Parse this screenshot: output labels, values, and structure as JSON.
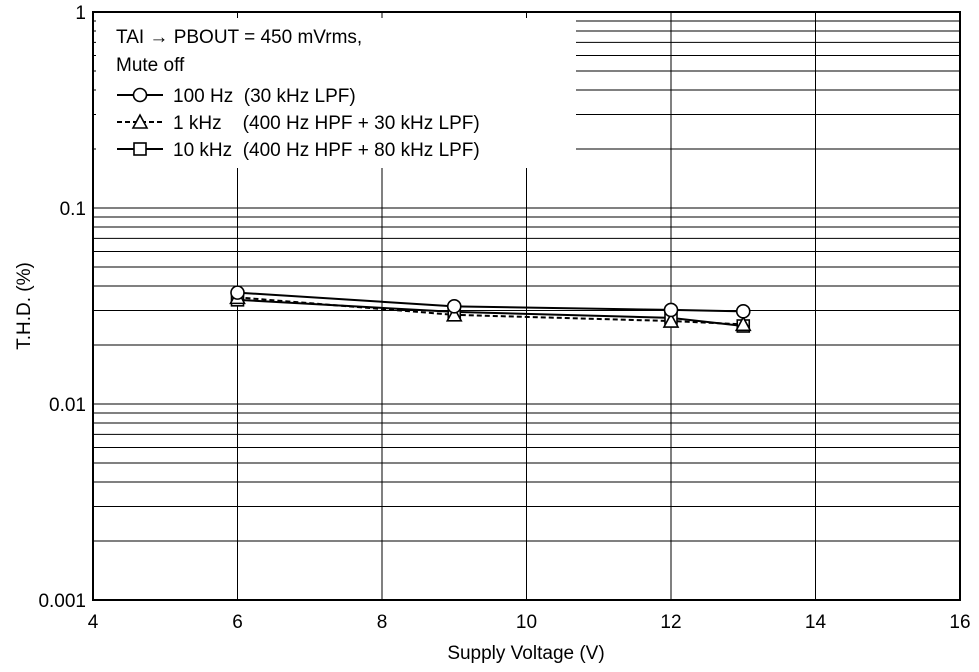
{
  "chart_data": {
    "type": "line",
    "xlabel": "Supply Voltage  (V)",
    "ylabel": "T.H.D.  (%)",
    "xlim": [
      4,
      16
    ],
    "ylim": [
      0.001,
      1
    ],
    "y_scale": "log",
    "grid": true,
    "x_ticks": [
      "4",
      "6",
      "8",
      "10",
      "12",
      "14",
      "16"
    ],
    "y_ticks": [
      "0.001",
      "0.01",
      "0.1",
      "1"
    ],
    "legend_position": "top-left",
    "legend_header": [
      "TAI → PBOUT = 450 mVrms,",
      "Mute off"
    ],
    "series": [
      {
        "name": "100 Hz  (30 kHz LPF)",
        "marker": "circle",
        "line": "solid",
        "x": [
          6,
          9,
          12,
          13
        ],
        "y": [
          0.037,
          0.0315,
          0.0302,
          0.0297
        ]
      },
      {
        "name": "1 kHz    (400 Hz HPF + 30 kHz LPF)",
        "marker": "triangle",
        "line": "dashed",
        "x": [
          6,
          9,
          12,
          13
        ],
        "y": [
          0.035,
          0.0285,
          0.0265,
          0.0255
        ]
      },
      {
        "name": "10 kHz  (400 Hz HPF + 80 kHz LPF)",
        "marker": "square",
        "line": "solid",
        "x": [
          6,
          9,
          12,
          13
        ],
        "y": [
          0.034,
          0.0295,
          0.0275,
          0.025
        ]
      }
    ]
  }
}
